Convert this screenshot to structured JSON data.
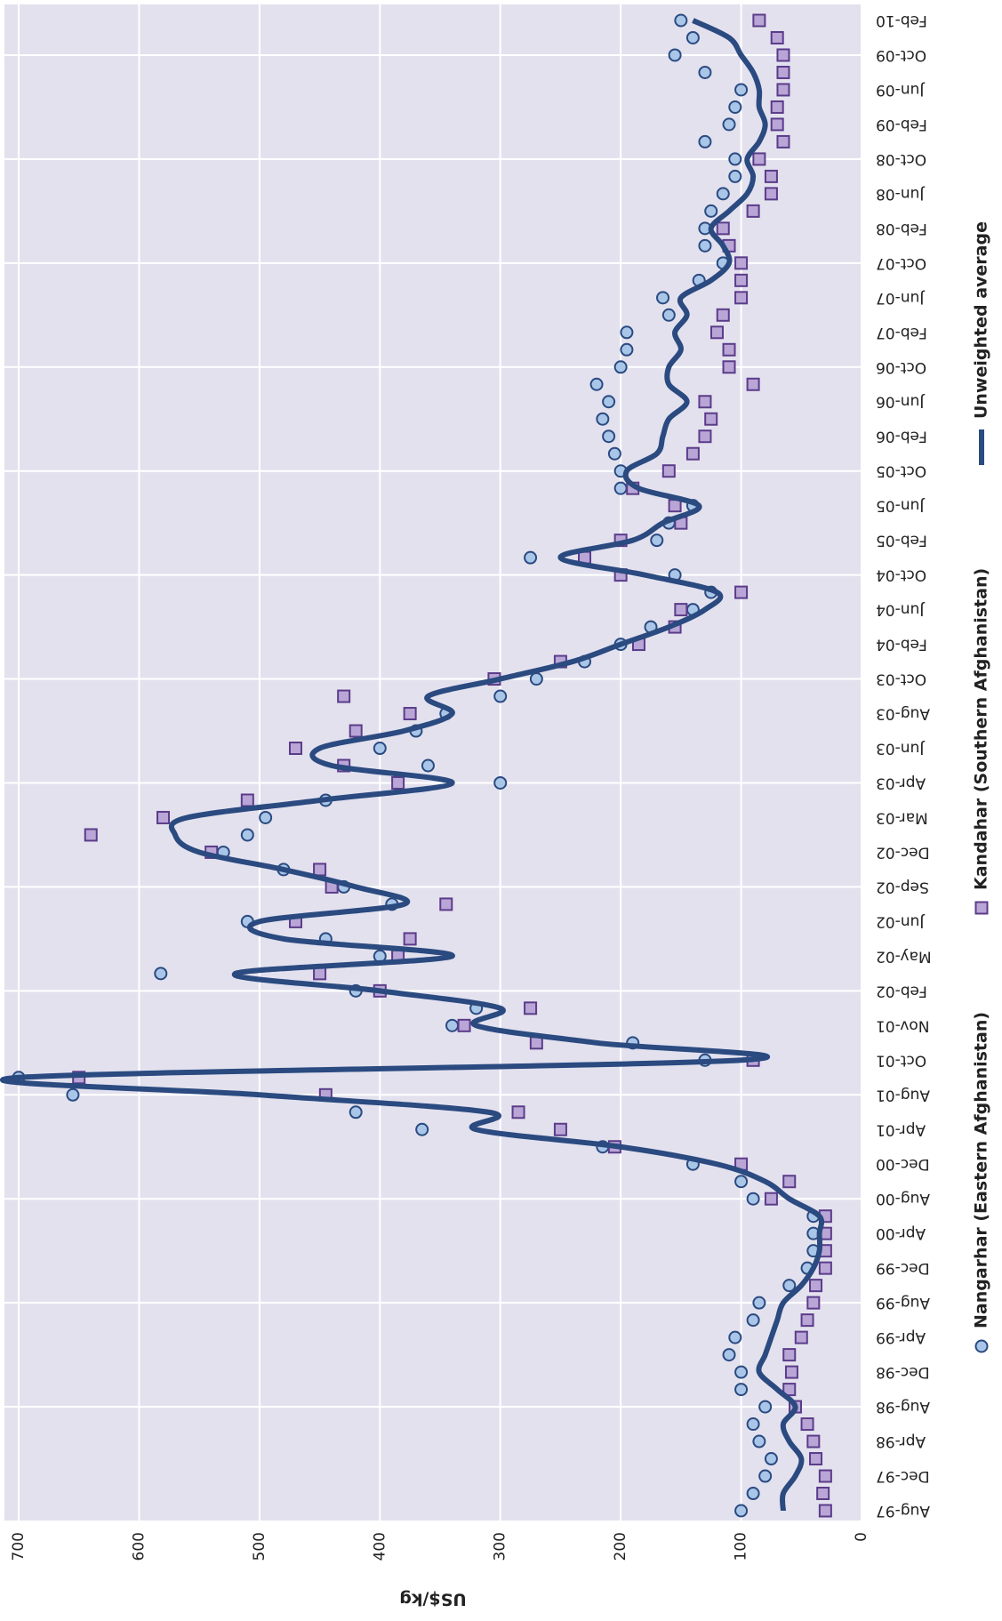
{
  "chart_data": {
    "type": "combo",
    "y_axis_label": "US$/kg",
    "ylim": [
      0,
      700
    ],
    "yticks": [
      0,
      100,
      200,
      300,
      400,
      500,
      600,
      700
    ],
    "grid": true,
    "legend_position": "bottom",
    "background": "#e3e1ee",
    "categories": [
      "Aug-97",
      null,
      "Dec-97",
      null,
      "Apr-98",
      null,
      "Aug-98",
      null,
      "Dec-98",
      null,
      "Apr-99",
      null,
      "Aug-99",
      null,
      "Dec-99",
      null,
      "Apr-00",
      null,
      "Aug-00",
      null,
      "Dec-00",
      null,
      "Apr-01",
      null,
      "Aug-01",
      null,
      "Oct-01",
      null,
      "Nov-01",
      null,
      "Feb-02",
      null,
      "May-02",
      null,
      "Jun-02",
      null,
      "Sep-02",
      null,
      "Dec-02",
      null,
      "Mar-03",
      null,
      "Apr-03",
      null,
      "Jun-03",
      null,
      "Aug-03",
      null,
      "Oct-03",
      null,
      "Feb-04",
      null,
      "Jun-04",
      null,
      "Oct-04",
      null,
      "Feb-05",
      null,
      "Jun-05",
      null,
      "Oct-05",
      null,
      "Feb-06",
      null,
      "Jun-06",
      null,
      "Oct-06",
      null,
      "Feb-07",
      null,
      "Jun-07",
      null,
      "Oct-07",
      null,
      "Feb-08",
      null,
      "Jun-08",
      null,
      "Oct-08",
      null,
      "Feb-09",
      null,
      "Jun-09",
      null,
      "Oct-09",
      null,
      "Feb-10"
    ],
    "series": [
      {
        "name": "Nangarhar (Eastern Afghanistan)",
        "type": "scatter",
        "marker": "circle",
        "color": "#a9c6e8",
        "edge_color": "#2a4a80",
        "values": [
          100,
          90,
          80,
          75,
          85,
          90,
          80,
          100,
          100,
          110,
          105,
          90,
          85,
          60,
          45,
          40,
          40,
          40,
          90,
          100,
          140,
          215,
          365,
          420,
          655,
          700,
          130,
          190,
          340,
          320,
          420,
          582,
          400,
          445,
          510,
          390,
          430,
          480,
          530,
          510,
          495,
          445,
          300,
          360,
          400,
          370,
          345,
          300,
          270,
          230,
          200,
          175,
          140,
          125,
          155,
          275,
          170,
          160,
          140,
          200,
          200,
          205,
          210,
          215,
          210,
          220,
          200,
          195,
          195,
          160,
          165,
          135,
          115,
          130,
          130,
          125,
          115,
          105,
          105,
          130,
          110,
          105,
          100,
          130,
          155,
          140,
          150
        ]
      },
      {
        "name": "Kandahar (Southern Afghanistan)",
        "type": "scatter",
        "marker": "square",
        "color": "#b9a6d6",
        "edge_color": "#5b3c8a",
        "values": [
          30,
          32,
          30,
          38,
          40,
          45,
          55,
          60,
          58,
          60,
          50,
          45,
          40,
          38,
          30,
          30,
          30,
          30,
          75,
          60,
          100,
          205,
          250,
          285,
          445,
          650,
          90,
          270,
          330,
          275,
          400,
          450,
          385,
          375,
          470,
          345,
          440,
          450,
          540,
          640,
          580,
          510,
          385,
          430,
          470,
          420,
          375,
          430,
          305,
          250,
          185,
          155,
          150,
          100,
          200,
          230,
          200,
          150,
          155,
          190,
          160,
          140,
          130,
          125,
          130,
          90,
          110,
          110,
          120,
          115,
          100,
          100,
          100,
          110,
          115,
          90,
          75,
          75,
          85,
          65,
          70,
          70,
          65,
          65,
          65,
          70,
          85
        ]
      },
      {
        "name": "Unweighted average",
        "type": "line",
        "color": "#2a4a80",
        "values": [
          65,
          65,
          55,
          50,
          60,
          65,
          55,
          70,
          85,
          80,
          75,
          70,
          65,
          50,
          40,
          35,
          35,
          35,
          60,
          80,
          120,
          200,
          320,
          310,
          500,
          700,
          100,
          220,
          320,
          300,
          400,
          520,
          340,
          480,
          500,
          380,
          420,
          480,
          550,
          570,
          560,
          450,
          340,
          440,
          450,
          380,
          340,
          360,
          300,
          240,
          200,
          160,
          130,
          120,
          180,
          250,
          190,
          165,
          135,
          185,
          195,
          170,
          165,
          160,
          145,
          160,
          160,
          150,
          155,
          145,
          150,
          125,
          110,
          115,
          125,
          110,
          95,
          90,
          95,
          85,
          80,
          85,
          85,
          90,
          100,
          110,
          140
        ]
      }
    ]
  }
}
